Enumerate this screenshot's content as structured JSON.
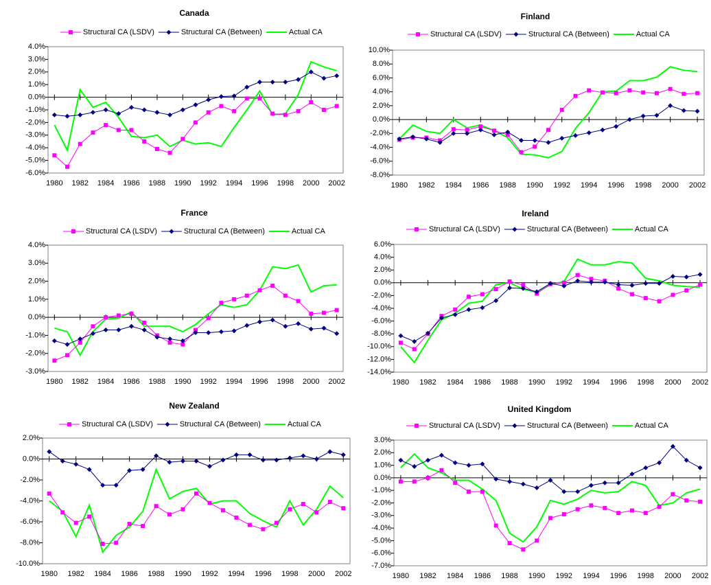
{
  "chart_data": [
    {
      "type": "line",
      "title": "Canada",
      "x": [
        1980,
        1981,
        1982,
        1983,
        1984,
        1985,
        1986,
        1987,
        1988,
        1989,
        1990,
        1991,
        1992,
        1993,
        1994,
        1995,
        1996,
        1997,
        1998,
        1999,
        2000,
        2001,
        2002
      ],
      "xlim": [
        1980,
        2002
      ],
      "xticks": [
        1980,
        1982,
        1984,
        1986,
        1988,
        1990,
        1992,
        1994,
        1996,
        1998,
        2000,
        2002
      ],
      "ylim": [
        -6,
        4
      ],
      "yticks": [
        {
          "value": -6,
          "label": "-6.0%"
        },
        {
          "value": -5,
          "label": "-5.0%"
        },
        {
          "value": -4,
          "label": "-4.0%"
        },
        {
          "value": -3,
          "label": "-3.0%"
        },
        {
          "value": -2,
          "label": "-2.0%"
        },
        {
          "value": -1,
          "label": "-1.0%"
        },
        {
          "value": 0,
          "label": "0.0%"
        },
        {
          "value": 1,
          "label": "1.0%"
        },
        {
          "value": 2,
          "label": "2.0%"
        },
        {
          "value": 3,
          "label": "3.0%"
        },
        {
          "value": 4,
          "label": "4.0%"
        }
      ],
      "series": [
        {
          "name": "Structural CA (LSDV)",
          "color": "#ff00ff",
          "marker": "square",
          "values": [
            -4.6,
            -5.5,
            -3.7,
            -2.8,
            -2.2,
            -2.6,
            -2.6,
            -3.5,
            -4.1,
            -4.4,
            -3.3,
            -2.0,
            -1.2,
            -0.7,
            -1.1,
            -0.1,
            -0.1,
            -1.3,
            -1.4,
            -1.1,
            -0.4,
            -1.0,
            -0.7
          ]
        },
        {
          "name": "Structural CA (Between)",
          "color": "#000080",
          "marker": "diamond",
          "values": [
            -1.4,
            -1.5,
            -1.4,
            -1.2,
            -1.0,
            -1.3,
            -0.8,
            -1.0,
            -1.2,
            -1.4,
            -1.0,
            -0.6,
            -0.2,
            0.05,
            0.1,
            0.8,
            1.2,
            1.2,
            1.2,
            1.4,
            2.0,
            1.5,
            1.7
          ]
        },
        {
          "name": "Actual CA",
          "color": "#00ff00",
          "marker": "none",
          "values": [
            -2.2,
            -4.2,
            0.6,
            -0.8,
            -0.4,
            -1.6,
            -3.1,
            -3.2,
            -3.0,
            -3.9,
            -3.4,
            -3.7,
            -3.6,
            -3.9,
            -2.4,
            -1.0,
            0.5,
            -1.4,
            -1.3,
            0.2,
            2.8,
            2.4,
            2.1
          ]
        }
      ]
    },
    {
      "type": "line",
      "title": "Finland",
      "x": [
        1980,
        1981,
        1982,
        1983,
        1984,
        1985,
        1986,
        1987,
        1988,
        1989,
        1990,
        1991,
        1992,
        1993,
        1994,
        1995,
        1996,
        1997,
        1998,
        1999,
        2000,
        2001,
        2002
      ],
      "xlim": [
        1980,
        2002
      ],
      "xticks": [
        1980,
        1982,
        1984,
        1986,
        1988,
        1990,
        1992,
        1994,
        1996,
        1998,
        2000,
        2002
      ],
      "ylim": [
        -8,
        10
      ],
      "yticks": [
        {
          "value": -8,
          "label": "-8.0%"
        },
        {
          "value": -6,
          "label": "-6.0%"
        },
        {
          "value": -4,
          "label": "-4.0%"
        },
        {
          "value": -2,
          "label": "-2.0%"
        },
        {
          "value": 0,
          "label": "0.0%"
        },
        {
          "value": 2,
          "label": "2.0%"
        },
        {
          "value": 4,
          "label": "4.0%"
        },
        {
          "value": 6,
          "label": "6.0%"
        },
        {
          "value": 8,
          "label": "8.0%"
        },
        {
          "value": 10,
          "label": "10.0%"
        }
      ],
      "series": [
        {
          "name": "Structural CA (LSDV)",
          "color": "#ff00ff",
          "marker": "square",
          "values": [
            -2.9,
            -2.6,
            -2.6,
            -3.0,
            -1.4,
            -1.5,
            -1.0,
            -1.6,
            -2.2,
            -4.7,
            -3.9,
            -1.5,
            1.4,
            3.4,
            4.2,
            3.9,
            3.8,
            4.2,
            3.9,
            3.8,
            4.4,
            3.7,
            3.8
          ]
        },
        {
          "name": "Structural CA (Between)",
          "color": "#000080",
          "marker": "diamond",
          "values": [
            -2.8,
            -2.5,
            -2.8,
            -3.3,
            -2.0,
            -2.0,
            -1.5,
            -2.2,
            -1.8,
            -3.0,
            -3.0,
            -3.3,
            -2.7,
            -2.3,
            -1.9,
            -1.5,
            -1.0,
            0.0,
            0.5,
            0.6,
            2.0,
            1.3,
            1.2
          ]
        },
        {
          "name": "Actual CA",
          "color": "#00ff00",
          "marker": "none",
          "values": [
            -2.8,
            -0.8,
            -1.7,
            -2.0,
            0.0,
            -1.2,
            -0.8,
            -1.6,
            -2.6,
            -5.0,
            -5.1,
            -5.5,
            -4.6,
            -1.3,
            1.0,
            4.0,
            4.1,
            5.6,
            5.6,
            6.1,
            7.6,
            7.1,
            6.9
          ]
        }
      ]
    },
    {
      "type": "line",
      "title": "France",
      "x": [
        1980,
        1981,
        1982,
        1983,
        1984,
        1985,
        1986,
        1987,
        1988,
        1989,
        1990,
        1991,
        1992,
        1993,
        1994,
        1995,
        1996,
        1997,
        1998,
        1999,
        2000,
        2001,
        2002
      ],
      "xlim": [
        1980,
        2002
      ],
      "xticks": [
        1980,
        1982,
        1984,
        1986,
        1988,
        1990,
        1992,
        1994,
        1996,
        1998,
        2000,
        2002
      ],
      "ylim": [
        -3,
        4
      ],
      "yticks": [
        {
          "value": -3,
          "label": "-3.0%"
        },
        {
          "value": -2,
          "label": "-2.0%"
        },
        {
          "value": -1,
          "label": "-1.0%"
        },
        {
          "value": 0,
          "label": "0.0%"
        },
        {
          "value": 1,
          "label": "1.0%"
        },
        {
          "value": 2,
          "label": "2.0%"
        },
        {
          "value": 3,
          "label": "3.0%"
        },
        {
          "value": 4,
          "label": "4.0%"
        }
      ],
      "series": [
        {
          "name": "Structural CA (LSDV)",
          "color": "#ff00ff",
          "marker": "square",
          "values": [
            -2.4,
            -2.1,
            -1.4,
            -0.5,
            0.0,
            0.1,
            0.2,
            -0.3,
            -1.0,
            -1.4,
            -1.5,
            -0.7,
            -0.05,
            0.8,
            1.0,
            1.2,
            1.5,
            1.75,
            1.2,
            0.9,
            0.2,
            0.25,
            0.4
          ]
        },
        {
          "name": "Structural CA (Between)",
          "color": "#000080",
          "marker": "diamond",
          "values": [
            -1.3,
            -1.5,
            -1.2,
            -0.9,
            -0.7,
            -0.7,
            -0.5,
            -0.7,
            -1.1,
            -1.2,
            -1.3,
            -0.85,
            -0.85,
            -0.8,
            -0.75,
            -0.45,
            -0.25,
            -0.15,
            -0.5,
            -0.35,
            -0.65,
            -0.6,
            -0.9
          ]
        },
        {
          "name": "Actual CA",
          "color": "#00ff00",
          "marker": "none",
          "values": [
            -0.6,
            -0.8,
            -2.1,
            -0.8,
            -0.1,
            -0.05,
            0.3,
            -0.5,
            -0.5,
            -0.5,
            -0.8,
            -0.4,
            0.2,
            0.7,
            0.55,
            0.7,
            1.5,
            2.8,
            2.7,
            2.9,
            1.4,
            1.75,
            1.8
          ]
        }
      ]
    },
    {
      "type": "line",
      "title": "Ireland",
      "x": [
        1980,
        1981,
        1982,
        1983,
        1984,
        1985,
        1986,
        1987,
        1988,
        1989,
        1990,
        1991,
        1992,
        1993,
        1994,
        1995,
        1996,
        1997,
        1998,
        1999,
        2000,
        2001,
        2002
      ],
      "xlim": [
        1980,
        2002
      ],
      "xticks": [
        1980,
        1982,
        1984,
        1986,
        1988,
        1990,
        1992,
        1994,
        1996,
        1998,
        2000,
        2002
      ],
      "ylim": [
        -14,
        6
      ],
      "yticks": [
        {
          "value": -14,
          "label": "-14.0%"
        },
        {
          "value": -12,
          "label": "-12.0%"
        },
        {
          "value": -10,
          "label": "-10.0%"
        },
        {
          "value": -8,
          "label": "-8.0%"
        },
        {
          "value": -6,
          "label": "-6.0%"
        },
        {
          "value": -4,
          "label": "-4.0%"
        },
        {
          "value": -2,
          "label": "-2.0%"
        },
        {
          "value": 0,
          "label": "0.0%"
        },
        {
          "value": 2,
          "label": "2.0%"
        },
        {
          "value": 4,
          "label": "4.0%"
        },
        {
          "value": 6,
          "label": "6.0%"
        }
      ],
      "series": [
        {
          "name": "Structural CA (LSDV)",
          "color": "#ff00ff",
          "marker": "square",
          "values": [
            -9.4,
            -10.4,
            -8.0,
            -5.2,
            -4.2,
            -2.2,
            -1.8,
            -1.0,
            0.2,
            -0.4,
            -1.7,
            -0.2,
            0.0,
            1.2,
            0.6,
            0.3,
            -0.9,
            -1.8,
            -2.4,
            -2.9,
            -1.9,
            -1.2,
            -0.3
          ]
        },
        {
          "name": "Structural CA (Between)",
          "color": "#000080",
          "marker": "diamond",
          "values": [
            -8.3,
            -9.2,
            -7.9,
            -5.5,
            -5.0,
            -4.2,
            -3.9,
            -2.8,
            -0.8,
            -0.9,
            -1.4,
            -0.1,
            -0.5,
            0.3,
            0.1,
            0.1,
            -0.3,
            -0.4,
            -0.1,
            -0.1,
            1.0,
            0.9,
            1.3
          ]
        },
        {
          "name": "Actual CA",
          "color": "#00ff00",
          "marker": "none",
          "values": [
            -10.0,
            -12.5,
            -9.0,
            -5.8,
            -4.8,
            -3.2,
            -2.9,
            -0.3,
            0.0,
            -1.0,
            -1.5,
            -0.3,
            0.2,
            3.7,
            2.8,
            2.8,
            3.3,
            3.1,
            0.7,
            0.3,
            -0.4,
            -0.6,
            -0.7
          ]
        }
      ]
    },
    {
      "type": "line",
      "title": "New Zealand",
      "x": [
        1980,
        1981,
        1982,
        1983,
        1984,
        1985,
        1986,
        1987,
        1988,
        1989,
        1990,
        1991,
        1992,
        1993,
        1994,
        1995,
        1996,
        1997,
        1998,
        1999,
        2000,
        2001,
        2002
      ],
      "xlim": [
        1980,
        2002
      ],
      "xticks": [
        1980,
        1982,
        1984,
        1986,
        1988,
        1990,
        1992,
        1994,
        1996,
        1998,
        2000,
        2002
      ],
      "ylim": [
        -10,
        2
      ],
      "yticks": [
        {
          "value": -10,
          "label": "-10.0%"
        },
        {
          "value": -8,
          "label": "-8.0%"
        },
        {
          "value": -6,
          "label": "-6.0%"
        },
        {
          "value": -4,
          "label": "-4.0%"
        },
        {
          "value": -2,
          "label": "-2.0%"
        },
        {
          "value": 0,
          "label": "0.0%"
        },
        {
          "value": 2,
          "label": "2.0%"
        }
      ],
      "series": [
        {
          "name": "Structural CA (LSDV)",
          "color": "#ff00ff",
          "marker": "square",
          "values": [
            -3.3,
            -5.1,
            -6.1,
            -5.5,
            -8.1,
            -8.0,
            -6.2,
            -6.4,
            -4.5,
            -5.3,
            -4.8,
            -3.3,
            -4.2,
            -4.9,
            -5.6,
            -6.3,
            -6.7,
            -6.1,
            -4.8,
            -4.3,
            -5.1,
            -4.1,
            -4.7
          ]
        },
        {
          "name": "Structural CA (Between)",
          "color": "#000080",
          "marker": "diamond",
          "values": [
            0.7,
            -0.2,
            -0.5,
            -1.0,
            -2.5,
            -2.5,
            -1.1,
            -1.0,
            0.3,
            -0.3,
            -0.2,
            -0.2,
            -0.7,
            -0.1,
            0.4,
            0.4,
            -0.1,
            -0.1,
            0.1,
            0.3,
            0.0,
            0.7,
            0.4
          ]
        },
        {
          "name": "Actual CA",
          "color": "#00ff00",
          "marker": "none",
          "values": [
            -4.0,
            -5.0,
            -7.4,
            -4.4,
            -8.9,
            -7.3,
            -6.5,
            -5.0,
            -1.0,
            -3.8,
            -3.1,
            -2.8,
            -4.3,
            -4.0,
            -4.0,
            -5.2,
            -5.9,
            -6.5,
            -4.0,
            -6.3,
            -4.8,
            -2.6,
            -3.7
          ]
        }
      ]
    },
    {
      "type": "line",
      "title": "United Kingdom",
      "x": [
        1980,
        1981,
        1982,
        1983,
        1984,
        1985,
        1986,
        1987,
        1988,
        1989,
        1990,
        1991,
        1992,
        1993,
        1994,
        1995,
        1996,
        1997,
        1998,
        1999,
        2000,
        2001,
        2002
      ],
      "xlim": [
        1980,
        2002
      ],
      "xticks": [
        1980,
        1982,
        1984,
        1986,
        1988,
        1990,
        1992,
        1994,
        1996,
        1998,
        2000,
        2002
      ],
      "ylim": [
        -7,
        3
      ],
      "yticks": [
        {
          "value": -7,
          "label": "-7.0%"
        },
        {
          "value": -6,
          "label": "-6.0%"
        },
        {
          "value": -5,
          "label": "-5.0%"
        },
        {
          "value": -4,
          "label": "-4.0%"
        },
        {
          "value": -3,
          "label": "-3.0%"
        },
        {
          "value": -2,
          "label": "-2.0%"
        },
        {
          "value": -1,
          "label": "-1.0%"
        },
        {
          "value": 0,
          "label": "0.0%"
        },
        {
          "value": 1,
          "label": "1.0%"
        },
        {
          "value": 2,
          "label": "2.0%"
        },
        {
          "value": 3,
          "label": "3.0%"
        }
      ],
      "series": [
        {
          "name": "Structural CA (LSDV)",
          "color": "#ff00ff",
          "marker": "square",
          "values": [
            -0.3,
            -0.3,
            0.0,
            0.6,
            -0.4,
            -1.1,
            -1.1,
            -3.8,
            -5.2,
            -5.7,
            -5.0,
            -3.2,
            -2.9,
            -2.5,
            -2.2,
            -2.4,
            -2.8,
            -2.6,
            -2.8,
            -2.3,
            -1.3,
            -1.8,
            -1.9
          ]
        },
        {
          "name": "Structural CA (Between)",
          "color": "#000080",
          "marker": "diamond",
          "values": [
            1.4,
            0.9,
            1.4,
            1.8,
            1.2,
            1.0,
            1.1,
            -0.1,
            -0.3,
            -0.5,
            -0.8,
            -0.2,
            -1.1,
            -1.1,
            -0.6,
            -0.4,
            -0.4,
            0.3,
            0.8,
            1.2,
            2.5,
            1.4,
            0.8
          ]
        },
        {
          "name": "Actual CA",
          "color": "#00ff00",
          "marker": "none",
          "values": [
            0.8,
            1.9,
            0.8,
            0.4,
            -0.2,
            -0.2,
            -0.9,
            -1.8,
            -4.4,
            -5.1,
            -3.9,
            -1.8,
            -2.1,
            -1.7,
            -1.0,
            -1.2,
            -1.1,
            -0.3,
            -0.6,
            -2.2,
            -2.0,
            -1.2,
            -0.9
          ]
        }
      ]
    }
  ]
}
